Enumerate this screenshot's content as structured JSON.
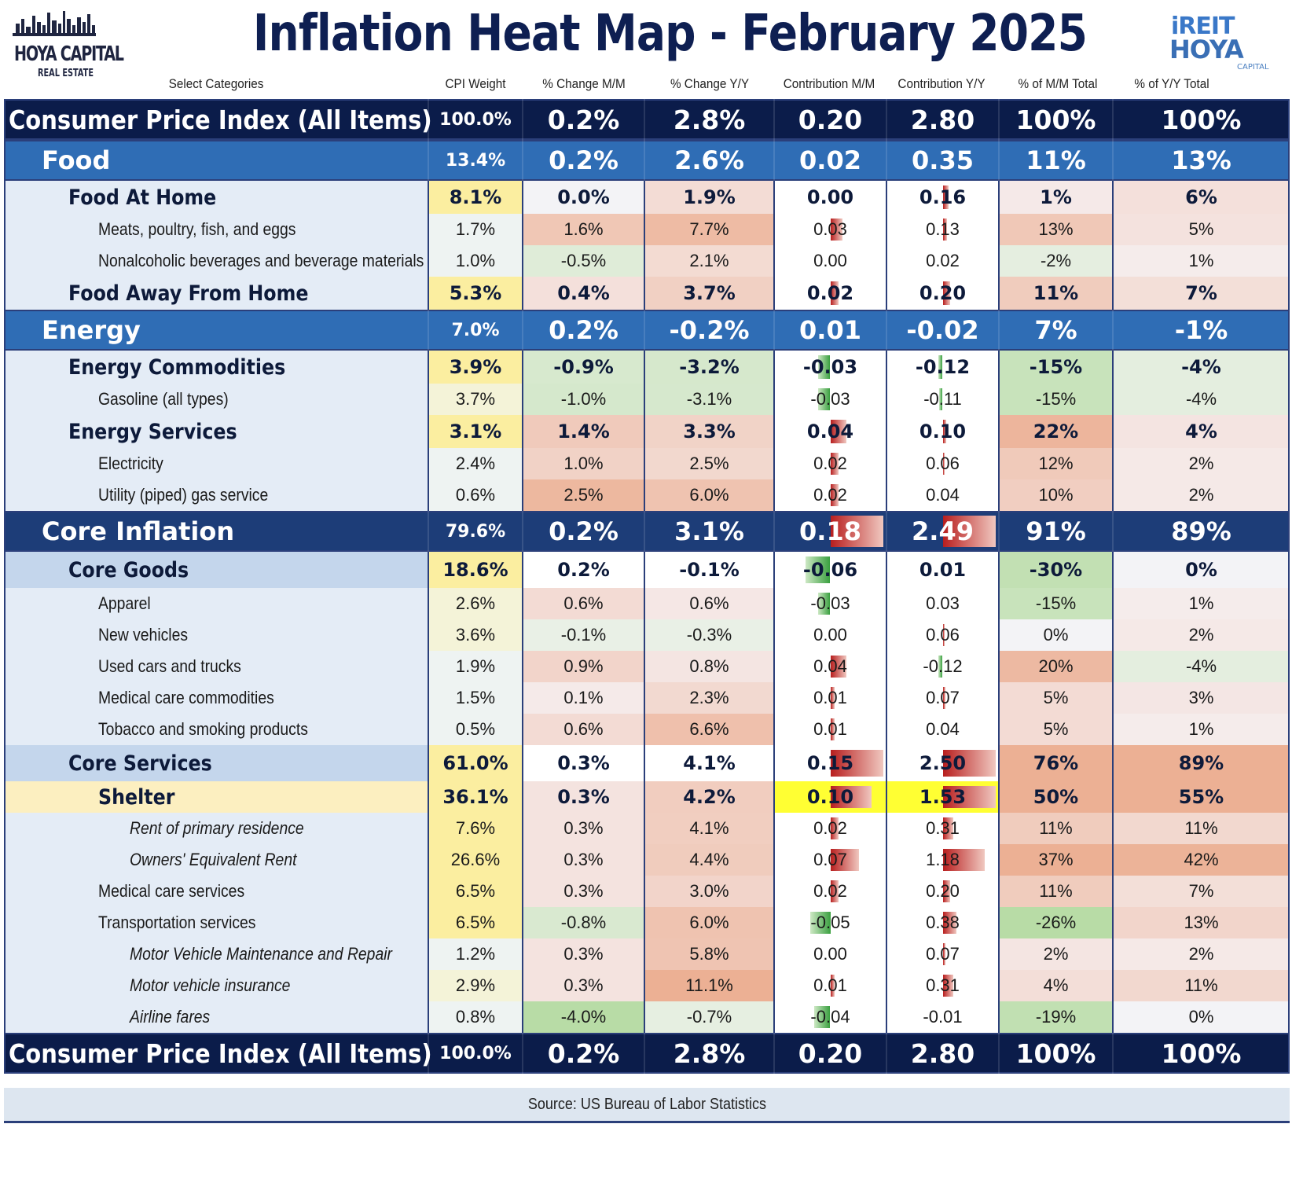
{
  "header": {
    "title": "Inflation Heat Map - February 2025",
    "logo_left_line1": "HOYA CAPITAL",
    "logo_left_line2": "REAL ESTATE",
    "logo_right_line1": "iREIT",
    "logo_right_line2": "HOYA",
    "logo_right_line3": "CAPITAL"
  },
  "columns": [
    "Select Categories",
    "CPI Weight",
    "% Change M/M",
    "% Change Y/Y",
    "Contribution M/M",
    "Contribution Y/Y",
    "% of M/M Total",
    "% of Y/Y Total"
  ],
  "footer": {
    "source": "Source: US Bureau of Labor Statistics"
  },
  "colors": {
    "total_row": "#0b1c4a",
    "category_row": "#2f6db5",
    "core_row": "#1d3d78",
    "core_sub_row": "#c4d6ec",
    "weight_highlight": "#fbeea0",
    "positive": "#e8b49c",
    "negative": "#b8dca8"
  },
  "chart_data": {
    "type": "table",
    "title": "Inflation Heat Map - February 2025",
    "columns": [
      "Select Categories",
      "CPI Weight",
      "% Change M/M",
      "% Change Y/Y",
      "Contribution M/M",
      "Contribution Y/Y",
      "% of M/M Total",
      "% of Y/Y Total"
    ],
    "rows": [
      {
        "kind": "total",
        "label": "Consumer Price Index (All Items)",
        "values": [
          "100.0%",
          "0.2%",
          "2.8%",
          "0.20",
          "2.80",
          "100%",
          "100%"
        ],
        "nums": [
          100.0,
          0.2,
          2.8,
          0.2,
          2.8,
          100,
          100
        ]
      },
      {
        "kind": "cat",
        "label": "Food",
        "values": [
          "13.4%",
          "0.2%",
          "2.6%",
          "0.02",
          "0.35",
          "11%",
          "13%"
        ],
        "nums": [
          13.4,
          0.2,
          2.6,
          0.02,
          0.35,
          11,
          13
        ]
      },
      {
        "kind": "sub",
        "label": "Food At Home",
        "values": [
          "8.1%",
          "0.0%",
          "1.9%",
          "0.00",
          "0.16",
          "1%",
          "6%"
        ],
        "nums": [
          8.1,
          0.0,
          1.9,
          0.0,
          0.16,
          1,
          6
        ]
      },
      {
        "kind": "item",
        "label": "Meats, poultry, fish, and eggs",
        "values": [
          "1.7%",
          "1.6%",
          "7.7%",
          "0.03",
          "0.13",
          "13%",
          "5%"
        ],
        "nums": [
          1.7,
          1.6,
          7.7,
          0.03,
          0.13,
          13,
          5
        ]
      },
      {
        "kind": "item",
        "label": "Nonalcoholic beverages and beverage materials",
        "values": [
          "1.0%",
          "-0.5%",
          "2.1%",
          "0.00",
          "0.02",
          "-2%",
          "1%"
        ],
        "nums": [
          1.0,
          -0.5,
          2.1,
          0.0,
          0.02,
          -2,
          1
        ]
      },
      {
        "kind": "sub",
        "label": "Food Away From Home",
        "values": [
          "5.3%",
          "0.4%",
          "3.7%",
          "0.02",
          "0.20",
          "11%",
          "7%"
        ],
        "nums": [
          5.3,
          0.4,
          3.7,
          0.02,
          0.2,
          11,
          7
        ]
      },
      {
        "kind": "cat",
        "label": "Energy",
        "values": [
          "7.0%",
          "0.2%",
          "-0.2%",
          "0.01",
          "-0.02",
          "7%",
          "-1%"
        ],
        "nums": [
          7.0,
          0.2,
          -0.2,
          0.01,
          -0.02,
          7,
          -1
        ]
      },
      {
        "kind": "sub",
        "label": "Energy Commodities",
        "values": [
          "3.9%",
          "-0.9%",
          "-3.2%",
          "-0.03",
          "-0.12",
          "-15%",
          "-4%"
        ],
        "nums": [
          3.9,
          -0.9,
          -3.2,
          -0.03,
          -0.12,
          -15,
          -4
        ]
      },
      {
        "kind": "item",
        "label": "Gasoline (all types)",
        "values": [
          "3.7%",
          "-1.0%",
          "-3.1%",
          "-0.03",
          "-0.11",
          "-15%",
          "-4%"
        ],
        "nums": [
          3.7,
          -1.0,
          -3.1,
          -0.03,
          -0.11,
          -15,
          -4
        ]
      },
      {
        "kind": "sub",
        "label": "Energy Services",
        "values": [
          "3.1%",
          "1.4%",
          "3.3%",
          "0.04",
          "0.10",
          "22%",
          "4%"
        ],
        "nums": [
          3.1,
          1.4,
          3.3,
          0.04,
          0.1,
          22,
          4
        ]
      },
      {
        "kind": "item",
        "label": "Electricity",
        "values": [
          "2.4%",
          "1.0%",
          "2.5%",
          "0.02",
          "0.06",
          "12%",
          "2%"
        ],
        "nums": [
          2.4,
          1.0,
          2.5,
          0.02,
          0.06,
          12,
          2
        ]
      },
      {
        "kind": "item",
        "label": "Utility (piped) gas service",
        "values": [
          "0.6%",
          "2.5%",
          "6.0%",
          "0.02",
          "0.04",
          "10%",
          "2%"
        ],
        "nums": [
          0.6,
          2.5,
          6.0,
          0.02,
          0.04,
          10,
          2
        ]
      },
      {
        "kind": "core",
        "label": "Core Inflation",
        "values": [
          "79.6%",
          "0.2%",
          "3.1%",
          "0.18",
          "2.49",
          "91%",
          "89%"
        ],
        "nums": [
          79.6,
          0.2,
          3.1,
          0.18,
          2.49,
          91,
          89
        ]
      },
      {
        "kind": "coresub",
        "label": "Core Goods",
        "values": [
          "18.6%",
          "0.2%",
          "-0.1%",
          "-0.06",
          "0.01",
          "-30%",
          "0%"
        ],
        "nums": [
          18.6,
          0.2,
          -0.1,
          -0.06,
          0.01,
          -30,
          0
        ]
      },
      {
        "kind": "item",
        "label": "Apparel",
        "values": [
          "2.6%",
          "0.6%",
          "0.6%",
          "-0.03",
          "0.03",
          "-15%",
          "1%"
        ],
        "nums": [
          2.6,
          0.6,
          0.6,
          -0.03,
          0.03,
          -15,
          1
        ]
      },
      {
        "kind": "item",
        "label": "New vehicles",
        "values": [
          "3.6%",
          "-0.1%",
          "-0.3%",
          "0.00",
          "0.06",
          "0%",
          "2%"
        ],
        "nums": [
          3.6,
          -0.1,
          -0.3,
          0.0,
          0.06,
          0,
          2
        ]
      },
      {
        "kind": "item",
        "label": "Used cars and trucks",
        "values": [
          "1.9%",
          "0.9%",
          "0.8%",
          "0.04",
          "-0.12",
          "20%",
          "-4%"
        ],
        "nums": [
          1.9,
          0.9,
          0.8,
          0.04,
          -0.12,
          20,
          -4
        ]
      },
      {
        "kind": "item",
        "label": "Medical care commodities",
        "values": [
          "1.5%",
          "0.1%",
          "2.3%",
          "0.01",
          "0.07",
          "5%",
          "3%"
        ],
        "nums": [
          1.5,
          0.1,
          2.3,
          0.01,
          0.07,
          5,
          3
        ]
      },
      {
        "kind": "item",
        "label": "Tobacco and smoking products",
        "values": [
          "0.5%",
          "0.6%",
          "6.6%",
          "0.01",
          "0.04",
          "5%",
          "1%"
        ],
        "nums": [
          0.5,
          0.6,
          6.6,
          0.01,
          0.04,
          5,
          1
        ]
      },
      {
        "kind": "coresub",
        "label": "Core Services",
        "values": [
          "61.0%",
          "0.3%",
          "4.1%",
          "0.15",
          "2.50",
          "76%",
          "89%"
        ],
        "nums": [
          61.0,
          0.3,
          4.1,
          0.15,
          2.5,
          76,
          89
        ]
      },
      {
        "kind": "shelter",
        "label": "Shelter",
        "values": [
          "36.1%",
          "0.3%",
          "4.2%",
          "0.10",
          "1.53",
          "50%",
          "55%"
        ],
        "nums": [
          36.1,
          0.3,
          4.2,
          0.1,
          1.53,
          50,
          55
        ]
      },
      {
        "kind": "italic",
        "label": "Rent of primary residence",
        "values": [
          "7.6%",
          "0.3%",
          "4.1%",
          "0.02",
          "0.31",
          "11%",
          "11%"
        ],
        "nums": [
          7.6,
          0.3,
          4.1,
          0.02,
          0.31,
          11,
          11
        ]
      },
      {
        "kind": "italic",
        "label": "Owners' Equivalent Rent",
        "values": [
          "26.6%",
          "0.3%",
          "4.4%",
          "0.07",
          "1.18",
          "37%",
          "42%"
        ],
        "nums": [
          26.6,
          0.3,
          4.4,
          0.07,
          1.18,
          37,
          42
        ]
      },
      {
        "kind": "item",
        "label": "Medical care services",
        "values": [
          "6.5%",
          "0.3%",
          "3.0%",
          "0.02",
          "0.20",
          "11%",
          "7%"
        ],
        "nums": [
          6.5,
          0.3,
          3.0,
          0.02,
          0.2,
          11,
          7
        ]
      },
      {
        "kind": "item",
        "label": "Transportation services",
        "values": [
          "6.5%",
          "-0.8%",
          "6.0%",
          "-0.05",
          "0.38",
          "-26%",
          "13%"
        ],
        "nums": [
          6.5,
          -0.8,
          6.0,
          -0.05,
          0.38,
          -26,
          13
        ]
      },
      {
        "kind": "italic",
        "label": "Motor Vehicle Maintenance and Repair",
        "values": [
          "1.2%",
          "0.3%",
          "5.8%",
          "0.00",
          "0.07",
          "2%",
          "2%"
        ],
        "nums": [
          1.2,
          0.3,
          5.8,
          0.0,
          0.07,
          2,
          2
        ]
      },
      {
        "kind": "italic",
        "label": "Motor vehicle insurance",
        "values": [
          "2.9%",
          "0.3%",
          "11.1%",
          "0.01",
          "0.31",
          "4%",
          "11%"
        ],
        "nums": [
          2.9,
          0.3,
          11.1,
          0.01,
          0.31,
          4,
          11
        ]
      },
      {
        "kind": "italic",
        "label": "Airline fares",
        "values": [
          "0.8%",
          "-4.0%",
          "-0.7%",
          "-0.04",
          "-0.01",
          "-19%",
          "0%"
        ],
        "nums": [
          0.8,
          -4.0,
          -0.7,
          -0.04,
          -0.01,
          -19,
          0
        ]
      },
      {
        "kind": "total",
        "label": "Consumer Price Index (All Items)",
        "values": [
          "100.0%",
          "0.2%",
          "2.8%",
          "0.20",
          "2.80",
          "100%",
          "100%"
        ],
        "nums": [
          100.0,
          0.2,
          2.8,
          0.2,
          2.8,
          100,
          100
        ]
      }
    ]
  }
}
